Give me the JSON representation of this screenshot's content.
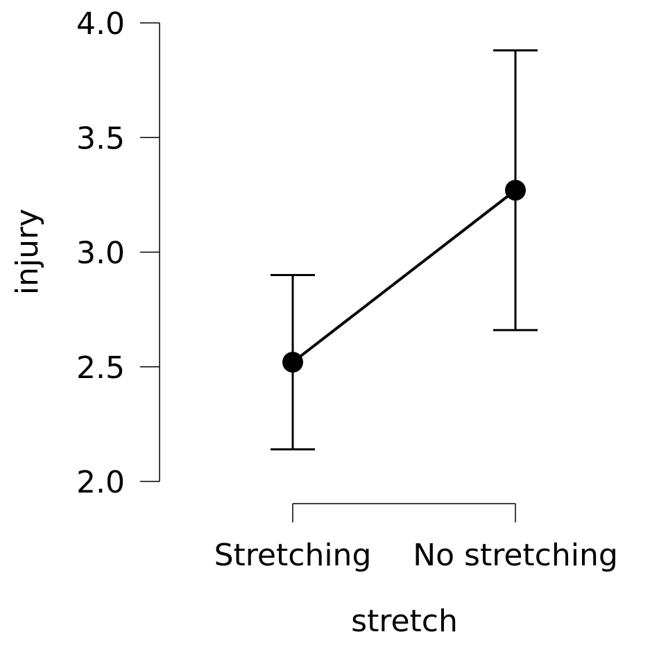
{
  "chart_data": {
    "type": "line",
    "xlabel": "stretch",
    "ylabel": "injury",
    "categories": [
      "Stretching",
      "No stretching"
    ],
    "series": [
      {
        "values": [
          2.52,
          3.27
        ],
        "error_low": [
          2.14,
          2.66
        ],
        "error_high": [
          2.9,
          3.88
        ]
      }
    ],
    "ylim": [
      2.0,
      4.0
    ],
    "yticks": [
      "2.0",
      "2.5",
      "3.0",
      "3.5",
      "4.0"
    ],
    "grid": false,
    "color": "#000000"
  }
}
